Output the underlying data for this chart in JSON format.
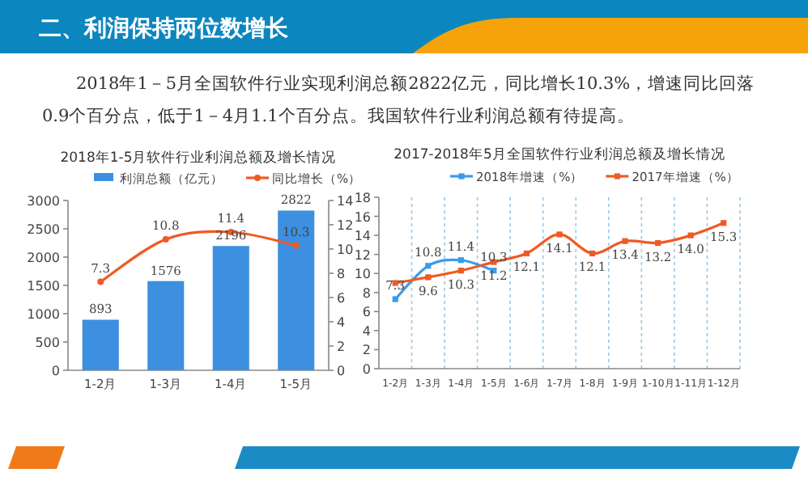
{
  "chart_data": [
    {
      "type": "other",
      "title": "二、利润保持两位数增长",
      "subtitle": "2018年1－5月全国软件行业实现利润总额2822亿元，同比增长10.3%，增速同比回落0.9个百分点，低于1－4月1.1个百分点。我国软件行业利润总额有待提高。"
    },
    {
      "type": "bar",
      "title": "2018年1-5月软件行业利润总额及增长情况",
      "categories": [
        "1-2月",
        "1-3月",
        "1-4月",
        "1-5月"
      ],
      "series": [
        {
          "name": "利润总额（亿元）",
          "color": "#3d8fe0",
          "values": [
            893,
            1576,
            2196,
            2822
          ]
        },
        {
          "name": "同比增长（%）",
          "type": "line",
          "axis": "y2",
          "color": "#f05a23",
          "values": [
            7.3,
            10.8,
            11.4,
            10.3
          ]
        }
      ],
      "ylim": [
        0,
        3000
      ],
      "yticks": [
        0,
        500,
        1000,
        1500,
        2000,
        2500,
        3000
      ],
      "y2lim": [
        0,
        14
      ],
      "y2ticks": [
        0,
        2,
        4,
        6,
        8,
        10,
        12,
        14
      ],
      "data_labels": true,
      "legend": "top",
      "marker": "circle"
    },
    {
      "type": "line",
      "title": "2017-2018年5月全国软件行业利润总额及增长情况",
      "categories": [
        "1-2月",
        "1-3月",
        "1-4月",
        "1-5月",
        "1-6月",
        "1-7月",
        "1-8月",
        "1-9月",
        "1-10月",
        "1-11月",
        "1-12月"
      ],
      "series": [
        {
          "name": "2018年增速（%）",
          "color": "#3b9be8",
          "values": [
            7.3,
            10.8,
            11.4,
            10.3,
            null,
            null,
            null,
            null,
            null,
            null,
            null
          ],
          "value_labels": [
            "7.3",
            "10.8",
            "11.4",
            "10.3",
            null,
            null,
            null,
            null,
            null,
            null,
            null
          ]
        },
        {
          "name": "2017年增速（%）",
          "color": "#f05a23",
          "values": [
            9.0,
            9.6,
            10.3,
            11.2,
            12.1,
            14.1,
            12.1,
            13.4,
            13.2,
            14.0,
            15.3
          ],
          "value_labels": [
            null,
            "9.6",
            "10.3",
            "11.2",
            "12.1",
            "14.1",
            "12.1",
            "13.4",
            "13.2",
            "14.0",
            "15.3"
          ]
        }
      ],
      "ylim": [
        0,
        18
      ],
      "yticks": [
        0,
        2,
        4,
        6,
        8,
        10,
        12,
        14,
        16,
        18
      ],
      "grid": "x",
      "legend": "top",
      "marker": "square"
    }
  ]
}
